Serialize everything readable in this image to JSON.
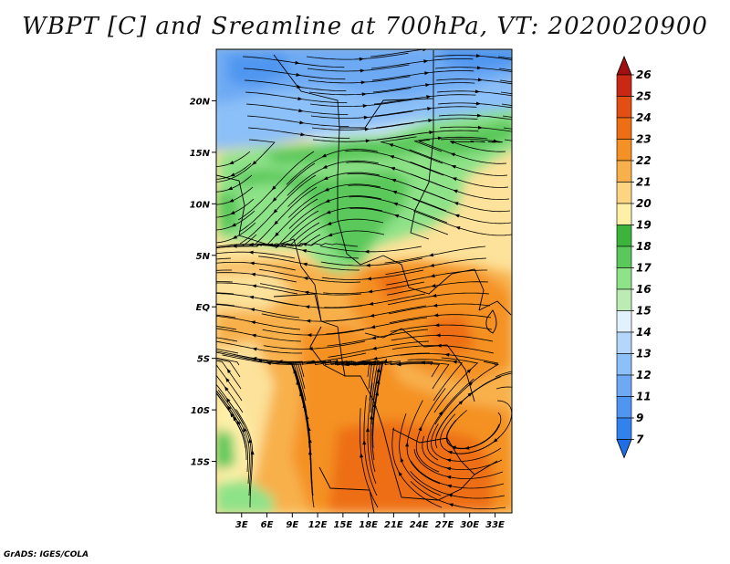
{
  "title": "WBPT [C] and Sreamline at 700hPa, VT: 2020020900",
  "credit": "GrADS: IGES/COLA",
  "lat_labels": [
    "20N",
    "15N",
    "10N",
    "5N",
    "EQ",
    "5S",
    "10S",
    "15S"
  ],
  "lat_values": [
    20,
    15,
    10,
    5,
    0,
    -5,
    -10,
    -15
  ],
  "lon_labels": [
    "3E",
    "6E",
    "9E",
    "12E",
    "15E",
    "18E",
    "21E",
    "24E",
    "27E",
    "30E",
    "33E"
  ],
  "lon_values": [
    3,
    6,
    9,
    12,
    15,
    18,
    21,
    24,
    27,
    30,
    33
  ],
  "map_extent": {
    "lon": [
      0,
      35
    ],
    "lat": [
      -20,
      25
    ]
  },
  "colorbar": {
    "labels": [
      "7",
      "9",
      "11",
      "12",
      "13",
      "14",
      "15",
      "16",
      "17",
      "18",
      "19",
      "20",
      "21",
      "22",
      "23",
      "24",
      "25",
      "26"
    ],
    "colors": [
      "#1e6ee6",
      "#3282ee",
      "#5096f0",
      "#6eaaf4",
      "#8cc0f8",
      "#b4d6fa",
      "#e2f2fc",
      "#bcecb4",
      "#8ee288",
      "#5ac85a",
      "#3cb43c",
      "#fff0a8",
      "#fcd482",
      "#f8b04c",
      "#f49124",
      "#ee6e16",
      "#e24e14",
      "#c82814",
      "#a01010"
    ]
  }
}
